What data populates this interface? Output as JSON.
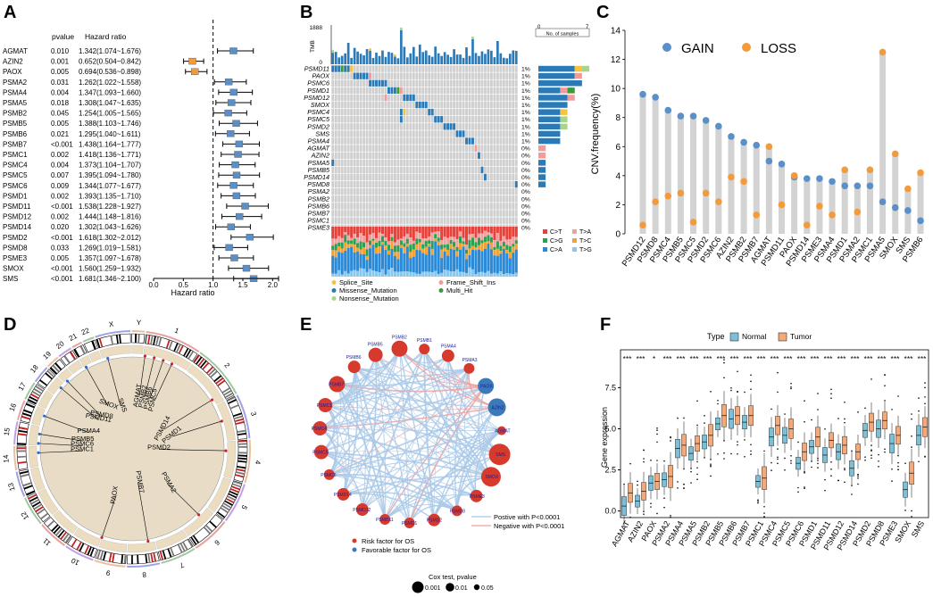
{
  "panels": {
    "A": "A",
    "B": "B",
    "C": "C",
    "D": "D",
    "E": "E",
    "F": "F"
  },
  "forest": {
    "col_gene": "",
    "col_pvalue": "pvalue",
    "col_hr": "Hazard ratio",
    "xlabel": "Hazard ratio",
    "ticks": [
      "0.0",
      "0.5",
      "1.0",
      "1.5",
      "2.0"
    ],
    "xlim": [
      0,
      2.1
    ],
    "refline": 1.0,
    "rows": [
      {
        "gene": "AGMAT",
        "p": "0.010",
        "hr_text": "1.342(1.074~1.676)",
        "hr": 1.342,
        "lo": 1.074,
        "hi": 1.676,
        "color": "#5b8fc7"
      },
      {
        "gene": "AZIN2",
        "p": "0.001",
        "hr_text": "0.652(0.504~0.842)",
        "hr": 0.652,
        "lo": 0.504,
        "hi": 0.842,
        "color": "#f39a3a"
      },
      {
        "gene": "PAOX",
        "p": "0.005",
        "hr_text": "0.694(0.536~0.898)",
        "hr": 0.694,
        "lo": 0.536,
        "hi": 0.898,
        "color": "#f39a3a"
      },
      {
        "gene": "PSMA2",
        "p": "0.031",
        "hr_text": "1.262(1.022~1.558)",
        "hr": 1.262,
        "lo": 1.022,
        "hi": 1.558,
        "color": "#5b8fc7"
      },
      {
        "gene": "PSMA4",
        "p": "0.004",
        "hr_text": "1.347(1.093~1.660)",
        "hr": 1.347,
        "lo": 1.093,
        "hi": 1.66,
        "color": "#5b8fc7"
      },
      {
        "gene": "PSMA5",
        "p": "0.018",
        "hr_text": "1.308(1.047~1.635)",
        "hr": 1.308,
        "lo": 1.047,
        "hi": 1.635,
        "color": "#5b8fc7"
      },
      {
        "gene": "PSMB2",
        "p": "0.045",
        "hr_text": "1.254(1.005~1.565)",
        "hr": 1.254,
        "lo": 1.005,
        "hi": 1.565,
        "color": "#5b8fc7"
      },
      {
        "gene": "PSMB5",
        "p": "0.005",
        "hr_text": "1.388(1.103~1.746)",
        "hr": 1.388,
        "lo": 1.103,
        "hi": 1.746,
        "color": "#5b8fc7"
      },
      {
        "gene": "PSMB6",
        "p": "0.021",
        "hr_text": "1.295(1.040~1.611)",
        "hr": 1.295,
        "lo": 1.04,
        "hi": 1.611,
        "color": "#5b8fc7"
      },
      {
        "gene": "PSMB7",
        "p": "<0.001",
        "hr_text": "1.438(1.164~1.777)",
        "hr": 1.438,
        "lo": 1.164,
        "hi": 1.777,
        "color": "#5b8fc7"
      },
      {
        "gene": "PSMC1",
        "p": "0.002",
        "hr_text": "1.418(1.136~1.771)",
        "hr": 1.418,
        "lo": 1.136,
        "hi": 1.771,
        "color": "#5b8fc7"
      },
      {
        "gene": "PSMC4",
        "p": "0.004",
        "hr_text": "1.373(1.104~1.707)",
        "hr": 1.373,
        "lo": 1.104,
        "hi": 1.707,
        "color": "#5b8fc7"
      },
      {
        "gene": "PSMC5",
        "p": "0.007",
        "hr_text": "1.395(1.094~1.780)",
        "hr": 1.395,
        "lo": 1.094,
        "hi": 1.78,
        "color": "#5b8fc7"
      },
      {
        "gene": "PSMC6",
        "p": "0.009",
        "hr_text": "1.344(1.077~1.677)",
        "hr": 1.344,
        "lo": 1.077,
        "hi": 1.677,
        "color": "#5b8fc7"
      },
      {
        "gene": "PSMD1",
        "p": "0.002",
        "hr_text": "1.393(1.135~1.710)",
        "hr": 1.393,
        "lo": 1.135,
        "hi": 1.71,
        "color": "#5b8fc7"
      },
      {
        "gene": "PSMD11",
        "p": "<0.001",
        "hr_text": "1.538(1.228~1.927)",
        "hr": 1.538,
        "lo": 1.228,
        "hi": 1.927,
        "color": "#5b8fc7"
      },
      {
        "gene": "PSMD12",
        "p": "0.002",
        "hr_text": "1.444(1.148~1.816)",
        "hr": 1.444,
        "lo": 1.148,
        "hi": 1.816,
        "color": "#5b8fc7"
      },
      {
        "gene": "PSMD14",
        "p": "0.020",
        "hr_text": "1.302(1.043~1.626)",
        "hr": 1.302,
        "lo": 1.043,
        "hi": 1.626,
        "color": "#5b8fc7"
      },
      {
        "gene": "PSMD2",
        "p": "<0.001",
        "hr_text": "1.618(1.302~2.012)",
        "hr": 1.618,
        "lo": 1.302,
        "hi": 2.012,
        "color": "#5b8fc7"
      },
      {
        "gene": "PSMD8",
        "p": "0.033",
        "hr_text": "1.269(1.019~1.581)",
        "hr": 1.269,
        "lo": 1.019,
        "hi": 1.581,
        "color": "#5b8fc7"
      },
      {
        "gene": "PSME3",
        "p": "0.005",
        "hr_text": "1.357(1.097~1.678)",
        "hr": 1.357,
        "lo": 1.097,
        "hi": 1.678,
        "color": "#5b8fc7"
      },
      {
        "gene": "SMOX",
        "p": "<0.001",
        "hr_text": "1.560(1.259~1.932)",
        "hr": 1.56,
        "lo": 1.259,
        "hi": 1.932,
        "color": "#5b8fc7"
      },
      {
        "gene": "SMS",
        "p": "<0.001",
        "hr_text": "1.681(1.346~2.100)",
        "hr": 1.681,
        "lo": 1.346,
        "hi": 2.1,
        "color": "#5b8fc7"
      }
    ]
  },
  "oncoplot": {
    "tmb_label": "TMB",
    "tmb_max": "1888",
    "tmb_zero": "0",
    "nsamp_label": "No. of samples",
    "nsamp_min": "0",
    "nsamp_max": "7",
    "genes": [
      "PSMD11",
      "PAOX",
      "PSMC6",
      "PSMD1",
      "PSMD12",
      "SMOX",
      "PSMC4",
      "PSMC5",
      "PSMD2",
      "SMS",
      "PSMA4",
      "AGMAT",
      "AZIN2",
      "PSMA5",
      "PSMB5",
      "PSMD14",
      "PSMD8",
      "PSMA2",
      "PSMB2",
      "PSMB6",
      "PSMB7",
      "PSMC1",
      "PSME3"
    ],
    "pcts": [
      "1%",
      "1%",
      "1%",
      "1%",
      "1%",
      "1%",
      "1%",
      "1%",
      "1%",
      "1%",
      "1%",
      "0%",
      "0%",
      "0%",
      "0%",
      "0%",
      "0%",
      "0%",
      "0%",
      "0%",
      "0%",
      "0%",
      "0%"
    ],
    "counts": [
      7,
      6,
      6,
      5,
      5,
      4,
      4,
      4,
      4,
      3,
      3,
      1,
      1,
      1,
      1,
      1,
      1,
      0,
      0,
      0,
      0,
      0,
      0
    ],
    "tstv_legend": [
      "C>T",
      "T>A",
      "C>G",
      "T>C",
      "C>A",
      "T>G"
    ],
    "mut_legend": [
      "Splice_Site",
      "Frame_Shift_Ins",
      "Missense_Mutation",
      "Multi_Hit",
      "Nonsense_Mutation"
    ],
    "colors": {
      "missense": "#2a7ab8",
      "frameshift": "#f39a9a",
      "multi": "#3a9a3a",
      "nonsense": "#a8d48c",
      "splice": "#f5c242",
      "grey": "#cfcfcf",
      "CT": "#e8413a",
      "TA": "#f0a0a0",
      "CG": "#2aa050",
      "TC": "#f5a030",
      "CA": "#2a8ad8",
      "TG": "#88c8f0"
    }
  },
  "cnv": {
    "ylabel": "CNV.frequency(%)",
    "gain_label": "GAIN",
    "loss_label": "LOSS",
    "yticks": [
      "0",
      "2",
      "4",
      "6",
      "8",
      "10",
      "12",
      "14"
    ],
    "ylim": [
      0,
      14
    ],
    "gain_color": "#5b8fc7",
    "loss_color": "#f39a3a",
    "genes": [
      "PSMD12",
      "PSMD8",
      "PSMC4",
      "PSMB5",
      "PSMC5",
      "PSMD2",
      "PSMC6",
      "AZIN2",
      "PSMB2",
      "PSMB7",
      "AGMAT",
      "PSMD11",
      "PAOX",
      "PSMD14",
      "PSME3",
      "PSMA4",
      "PSMD1",
      "PSMA2",
      "PSMC1",
      "PSMA5",
      "SMOX",
      "SMS",
      "PSMB6"
    ],
    "gain": [
      9.6,
      9.4,
      8.5,
      8.1,
      8.1,
      7.8,
      7.4,
      6.7,
      6.3,
      6.1,
      5.0,
      4.8,
      3.9,
      3.8,
      3.8,
      3.6,
      3.3,
      3.3,
      3.3,
      2.2,
      1.8,
      1.6,
      0.9
    ],
    "loss": [
      0.6,
      2.2,
      2.6,
      2.8,
      0.8,
      2.8,
      2.2,
      3.9,
      3.6,
      1.3,
      6.0,
      2.0,
      4.0,
      0.6,
      1.9,
      1.3,
      4.4,
      1.5,
      4.4,
      12.5,
      5.5,
      3.1,
      4.2
    ]
  },
  "circos": {
    "chroms": [
      "1",
      "2",
      "3",
      "4",
      "5",
      "6",
      "7",
      "8",
      "9",
      "10",
      "11",
      "12",
      "13",
      "14",
      "15",
      "16",
      "17",
      "18",
      "19",
      "20",
      "21",
      "22",
      "X",
      "Y"
    ],
    "genes": [
      "PSMD14",
      "PSMD1",
      "PSMD2",
      "PSMA2",
      "PSMB7",
      "PAOX",
      "PSMC1",
      "PSMC6",
      "PSMB5",
      "PSMA4",
      "PSMD11",
      "PSMD8",
      "SMOX",
      "SMS",
      "AGMAT",
      "PSMB2",
      "PSMB6",
      "PSMC5"
    ]
  },
  "network": {
    "nodes": [
      "PSMB1",
      "PSMA4",
      "PSMA3",
      "PAOX",
      "AZIN2",
      "AGMAT",
      "SMS",
      "SMOX",
      "PSME3",
      "PSMD8",
      "PSMD2",
      "PSMD1",
      "PSMD11",
      "PSMD12",
      "PSMD14",
      "PSMC6",
      "PSMC5",
      "PSMC4",
      "PSMC1",
      "PSMB7",
      "PSMB6",
      "PSMB5",
      "PSMB2"
    ],
    "node_types": [
      "risk",
      "risk",
      "risk",
      "fav",
      "fav",
      "risk",
      "risk",
      "risk",
      "risk",
      "risk",
      "risk",
      "risk",
      "risk",
      "risk",
      "risk",
      "risk",
      "risk",
      "risk",
      "risk",
      "risk",
      "risk",
      "risk",
      "risk"
    ],
    "pos_label": "Postive with P<0.0001",
    "neg_label": "Negative with P<0.0001",
    "risk_label": "Risk factor for OS",
    "fav_label": "Favorable factor for OS",
    "cox_title": "Cox test, pvalue",
    "cox_sizes": [
      "0.001",
      "0.01",
      "0.05"
    ],
    "risk_color": "#d63a2c",
    "fav_color": "#3a7ab8",
    "pos_color": "#a8c8e8",
    "neg_color": "#f0a0a0"
  },
  "boxplot": {
    "type_label": "Type",
    "normal_label": "Normal",
    "tumor_label": "Tumor",
    "ylabel": "Gene expression",
    "yticks": [
      "0.0",
      "2.5",
      "5.0",
      "7.5"
    ],
    "ylim": [
      -0.4,
      9.8
    ],
    "normal_color": "#7cc0d8",
    "tumor_color": "#f5a878",
    "genes": [
      "AGMAT",
      "AZIN2",
      "PAOX",
      "PSMA2",
      "PSMA4",
      "PSMA5",
      "PSMB2",
      "PSMB5",
      "PSMB6",
      "PSMB7",
      "PSMC1",
      "PSMC4",
      "PSMC5",
      "PSMC6",
      "PSMD1",
      "PSMD11",
      "PSMD12",
      "PSMD14",
      "PSMD2",
      "PSMD8",
      "PSME3",
      "SMOX",
      "SMS"
    ],
    "sig": [
      "***",
      "***",
      "*",
      "***",
      "***",
      "***",
      "***",
      "***",
      "***",
      "***",
      "***",
      "***",
      "***",
      "***",
      "***",
      "***",
      "***",
      "***",
      "***",
      "***",
      "***",
      "***",
      "***"
    ],
    "normal_median": [
      0.3,
      0.6,
      1.7,
      1.9,
      3.8,
      3.5,
      4.2,
      5.3,
      5.6,
      5.4,
      1.8,
      4.5,
      4.6,
      2.9,
      3.9,
      3.4,
      3.6,
      2.6,
      4.9,
      5.0,
      4.1,
      1.3,
      4.6
    ],
    "tumor_median": [
      1.1,
      1.2,
      1.8,
      2.1,
      4.0,
      4.1,
      4.6,
      5.8,
      5.8,
      5.8,
      2.0,
      5.2,
      5.0,
      3.6,
      4.5,
      4.3,
      4.0,
      3.6,
      5.4,
      5.5,
      4.6,
      2.3,
      5.1
    ]
  }
}
